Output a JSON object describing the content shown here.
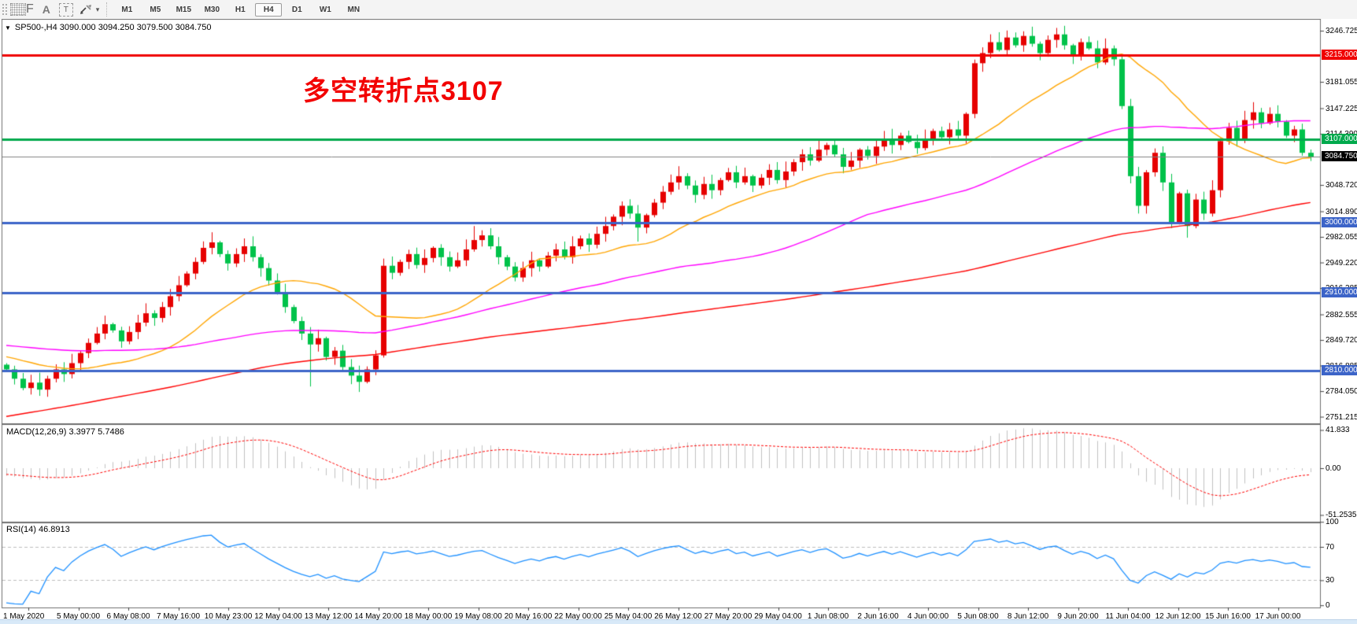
{
  "toolbar": {
    "icons": [
      {
        "name": "grid-f-icon",
        "sub": "F"
      },
      {
        "name": "font-a-icon",
        "glyph": "A"
      },
      {
        "name": "text-label-icon",
        "glyph": "T"
      },
      {
        "name": "crosshair-arrows-icon"
      },
      {
        "name": "dropdown-caret-icon",
        "glyph": "▾"
      }
    ],
    "timeframes": [
      {
        "label": "M1",
        "active": false
      },
      {
        "label": "M5",
        "active": false
      },
      {
        "label": "M15",
        "active": false
      },
      {
        "label": "M30",
        "active": false
      },
      {
        "label": "H1",
        "active": false
      },
      {
        "label": "H4",
        "active": true
      },
      {
        "label": "D1",
        "active": false
      },
      {
        "label": "W1",
        "active": false
      },
      {
        "label": "MN",
        "active": false
      }
    ]
  },
  "header": {
    "collapse_marker": "▼",
    "symbol_line": "SP500-,H4  3090.000 3094.250 3079.500 3084.750"
  },
  "annotation": {
    "text": "多空转折点3107",
    "color": "#f20000"
  },
  "panel_labels": {
    "macd": "MACD(12,26,9) 3.3977 5.7486",
    "rsi": "RSI(14) 46.8913"
  },
  "axis": {
    "main_ticks": [
      {
        "text": "3246.725",
        "value": 3246.725
      },
      {
        "text": "3181.055",
        "value": 3181.055
      },
      {
        "text": "3147.225",
        "value": 3147.225
      },
      {
        "text": "3114.390",
        "value": 3114.39
      },
      {
        "text": "3048.720",
        "value": 3048.72
      },
      {
        "text": "3014.890",
        "value": 3014.89
      },
      {
        "text": "2982.055",
        "value": 2982.055
      },
      {
        "text": "2949.220",
        "value": 2949.22
      },
      {
        "text": "2916.385",
        "value": 2916.385
      },
      {
        "text": "2882.555",
        "value": 2882.555
      },
      {
        "text": "2849.720",
        "value": 2849.72
      },
      {
        "text": "2816.885",
        "value": 2816.885
      },
      {
        "text": "2784.050",
        "value": 2784.05
      },
      {
        "text": "2751.215",
        "value": 2751.215
      }
    ],
    "badges": [
      {
        "text": "3215.000",
        "value": 3215.0,
        "bg": "#f00000"
      },
      {
        "text": "3107.000",
        "value": 3107.0,
        "bg": "#00a94c"
      },
      {
        "text": "3084.750",
        "value": 3084.75,
        "bg": "#000000"
      },
      {
        "text": "3000.000",
        "value": 3000.0,
        "bg": "#3c64c8"
      },
      {
        "text": "2910.000",
        "value": 2910.0,
        "bg": "#3c64c8"
      },
      {
        "text": "2810.000",
        "value": 2810.0,
        "bg": "#3c64c8"
      }
    ],
    "macd_ticks": [
      {
        "text": "41.833",
        "value": 41.833
      },
      {
        "text": "0.00",
        "value": 0
      },
      {
        "text": "-51.2535",
        "value": -51.2535
      }
    ],
    "rsi_ticks": [
      {
        "text": "100",
        "value": 100
      },
      {
        "text": "70",
        "value": 70
      },
      {
        "text": "30",
        "value": 30
      },
      {
        "text": "0",
        "value": 0
      }
    ],
    "time_labels": [
      "1 May 2020",
      "5 May 00:00",
      "6 May 08:00",
      "7 May 16:00",
      "10 May 23:00",
      "12 May 04:00",
      "13 May 12:00",
      "14 May 20:00",
      "18 May 00:00",
      "19 May 08:00",
      "20 May 16:00",
      "22 May 00:00",
      "25 May 04:00",
      "26 May 12:00",
      "27 May 20:00",
      "29 May 04:00",
      "1 Jun 08:00",
      "2 Jun 16:00",
      "4 Jun 00:00",
      "5 Jun 08:00",
      "8 Jun 12:00",
      "9 Jun 20:00",
      "11 Jun 04:00",
      "12 Jun 12:00",
      "15 Jun 16:00",
      "17 Jun 00:00"
    ]
  },
  "chart_data": {
    "type": "candlestick",
    "symbol": "SP500-",
    "timeframe": "H4",
    "current_bar": {
      "open": 3090.0,
      "high": 3094.25,
      "low": 3079.5,
      "close": 3084.75
    },
    "colors": {
      "bull": "#e60000",
      "bear": "#00c24a",
      "ma_fast": "#ffa500",
      "ma_mid": "#ff00ff",
      "ma_slow": "#ff0000",
      "macd_hist": "#c0c0c0",
      "macd_signal": "#ff0000",
      "rsi": "#1e90ff",
      "level_blue": "#3c64c8",
      "level_red": "#f00000",
      "level_green": "#00a94c",
      "price_line": "#808080"
    },
    "open_first": 2818,
    "closes": [
      2812,
      2800,
      2788,
      2795,
      2786,
      2800,
      2812,
      2806,
      2820,
      2833,
      2846,
      2858,
      2870,
      2862,
      2848,
      2860,
      2872,
      2884,
      2878,
      2892,
      2906,
      2920,
      2935,
      2950,
      2968,
      2975,
      2960,
      2948,
      2960,
      2970,
      2956,
      2942,
      2926,
      2910,
      2892,
      2874,
      2858,
      2844,
      2852,
      2828,
      2836,
      2815,
      2804,
      2796,
      2812,
      2830,
      2945,
      2936,
      2950,
      2960,
      2946,
      2955,
      2968,
      2956,
      2944,
      2952,
      2966,
      2978,
      2984,
      2970,
      2956,
      2944,
      2930,
      2942,
      2952,
      2944,
      2958,
      2966,
      2956,
      2970,
      2980,
      2972,
      2986,
      2996,
      3008,
      3022,
      3012,
      2994,
      3010,
      3026,
      3040,
      3052,
      3060,
      3048,
      3036,
      3050,
      3042,
      3055,
      3065,
      3052,
      3060,
      3048,
      3058,
      3068,
      3055,
      3066,
      3078,
      3088,
      3080,
      3094,
      3100,
      3088,
      3072,
      3080,
      3094,
      3086,
      3098,
      3108,
      3100,
      3112,
      3104,
      3096,
      3108,
      3118,
      3110,
      3120,
      3112,
      3140,
      3205,
      3218,
      3232,
      3222,
      3238,
      3228,
      3240,
      3230,
      3218,
      3235,
      3242,
      3228,
      3215,
      3232,
      3224,
      3206,
      3224,
      3210,
      3150,
      3060,
      3022,
      3065,
      3090,
      3052,
      3000,
      3038,
      2996,
      3030,
      3012,
      3042,
      3105,
      3122,
      3108,
      3132,
      3142,
      3128,
      3140,
      3130,
      3112,
      3120,
      3090,
      3084.75
    ],
    "wick_overrides": {
      "4": {
        "low": 2778
      },
      "25": {
        "high": 2988
      },
      "37": {
        "low": 2790
      },
      "43": {
        "low": 2783
      },
      "57": {
        "high": 2996
      },
      "62": {
        "low": 2925
      },
      "77": {
        "low": 2976
      },
      "122": {
        "high": 3247
      },
      "124": {
        "high": 3246
      },
      "138": {
        "low": 3012
      },
      "144": {
        "low": 2981
      },
      "152": {
        "high": 3155
      },
      "159": {
        "high": 3094.25,
        "low": 3079.5
      }
    },
    "hlines": [
      {
        "price": 3215.0,
        "color": "#f00000",
        "width": 3
      },
      {
        "price": 3107.0,
        "color": "#00a94c",
        "width": 3
      },
      {
        "price": 3000.0,
        "color": "#3c64c8",
        "width": 3
      },
      {
        "price": 2910.0,
        "color": "#3c64c8",
        "width": 3
      },
      {
        "price": 2810.0,
        "color": "#3c64c8",
        "width": 3
      },
      {
        "price": 3084.75,
        "color": "#808080",
        "width": 1,
        "role": "current-price"
      }
    ],
    "moving_averages": [
      {
        "period": 20,
        "color": "#ffa500"
      },
      {
        "period": 60,
        "color": "#ff00ff"
      },
      {
        "period": 150,
        "color": "#ff0000"
      }
    ],
    "macd": {
      "fast": 12,
      "slow": 26,
      "signal": 9,
      "last_main": 3.3977,
      "last_signal": 5.7486
    },
    "rsi": {
      "period": 14,
      "levels": [
        70,
        30
      ],
      "last": 46.8913
    },
    "prehistory": {
      "start": 2480,
      "rise_to": 2856,
      "rise_len": 100,
      "flat": 2850,
      "flat_len": 40,
      "end": 2812,
      "decline_len": 20
    }
  }
}
